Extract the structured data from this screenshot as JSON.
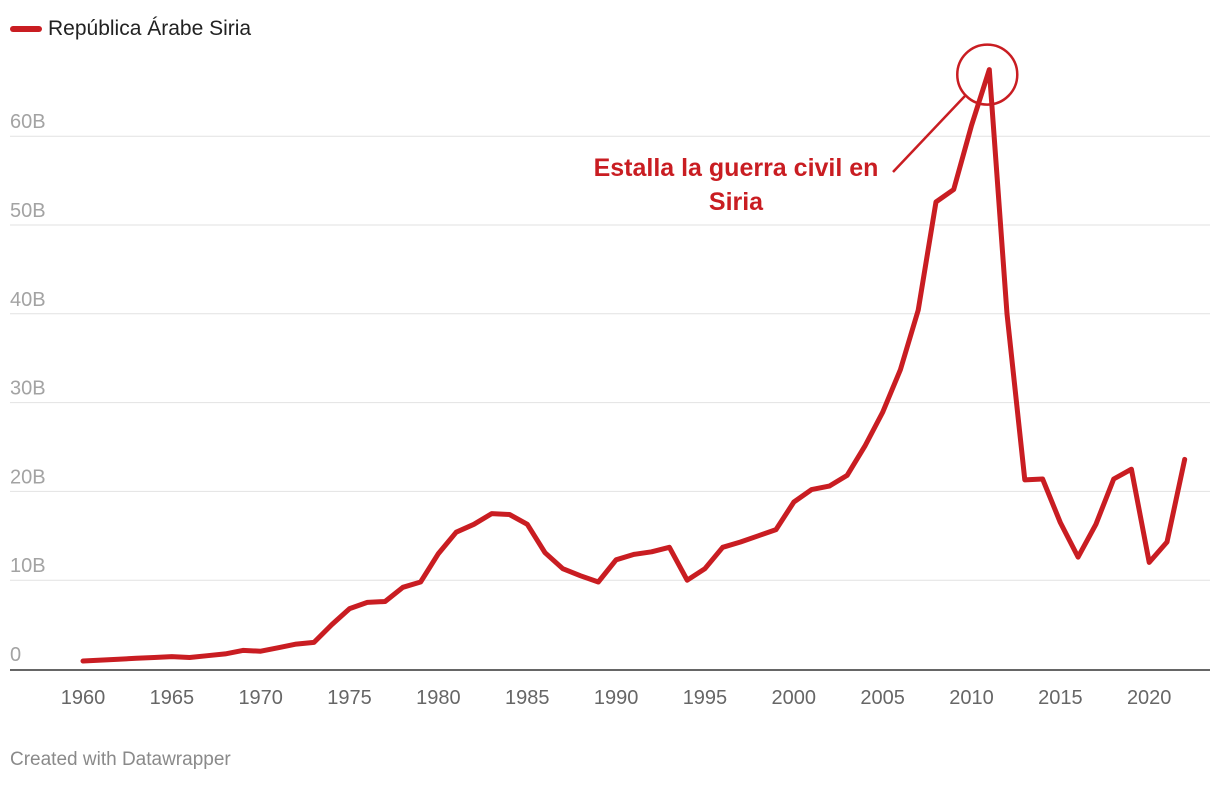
{
  "legend": {
    "label": "República Árabe Siria",
    "color": "#c91d22"
  },
  "footer": "Created with Datawrapper",
  "colors": {
    "line": "#c91d22",
    "grid": "#e2e2e2",
    "axis": "#333333"
  },
  "chart_data": {
    "type": "line",
    "title": "",
    "xlabel": "",
    "ylabel": "",
    "xlim": [
      1960,
      2022
    ],
    "ylim": [
      0,
      70
    ],
    "grid": true,
    "legend_position": "top-left",
    "y_ticks": [
      {
        "value": 0,
        "label": "0"
      },
      {
        "value": 10,
        "label": "10B"
      },
      {
        "value": 20,
        "label": "20B"
      },
      {
        "value": 30,
        "label": "30B"
      },
      {
        "value": 40,
        "label": "40B"
      },
      {
        "value": 50,
        "label": "50B"
      },
      {
        "value": 60,
        "label": "60B"
      }
    ],
    "x_ticks": [
      {
        "value": 1960,
        "label": "1960"
      },
      {
        "value": 1965,
        "label": "1965"
      },
      {
        "value": 1970,
        "label": "1970"
      },
      {
        "value": 1975,
        "label": "1975"
      },
      {
        "value": 1980,
        "label": "1980"
      },
      {
        "value": 1985,
        "label": "1985"
      },
      {
        "value": 1990,
        "label": "1990"
      },
      {
        "value": 1995,
        "label": "1995"
      },
      {
        "value": 2000,
        "label": "2000"
      },
      {
        "value": 2005,
        "label": "2005"
      },
      {
        "value": 2010,
        "label": "2010"
      },
      {
        "value": 2015,
        "label": "2015"
      },
      {
        "value": 2020,
        "label": "2020"
      }
    ],
    "series": [
      {
        "name": "República Árabe Siria",
        "x": [
          1960,
          1961,
          1962,
          1963,
          1964,
          1965,
          1966,
          1967,
          1968,
          1969,
          1970,
          1971,
          1972,
          1973,
          1974,
          1975,
          1976,
          1977,
          1978,
          1979,
          1980,
          1981,
          1982,
          1983,
          1984,
          1985,
          1986,
          1987,
          1988,
          1989,
          1990,
          1991,
          1992,
          1993,
          1994,
          1995,
          1996,
          1997,
          1998,
          1999,
          2000,
          2001,
          2002,
          2003,
          2004,
          2005,
          2006,
          2007,
          2008,
          2009,
          2010,
          2011,
          2012,
          2013,
          2014,
          2015,
          2016,
          2017,
          2018,
          2019,
          2020,
          2021,
          2022
        ],
        "y": [
          0.9,
          1.0,
          1.1,
          1.2,
          1.3,
          1.4,
          1.3,
          1.5,
          1.7,
          2.1,
          2.0,
          2.4,
          2.8,
          3.0,
          5.0,
          6.8,
          7.5,
          7.6,
          9.2,
          9.8,
          13.0,
          15.4,
          16.3,
          17.5,
          17.4,
          16.3,
          13.1,
          11.3,
          10.5,
          9.8,
          12.3,
          12.9,
          13.2,
          13.7,
          10.0,
          11.3,
          13.7,
          14.3,
          15.0,
          15.7,
          18.8,
          20.2,
          20.6,
          21.8,
          25.1,
          28.9,
          33.7,
          40.4,
          52.6,
          54.0,
          61.2,
          67.5,
          40.0,
          21.3,
          21.4,
          16.5,
          12.6,
          16.3,
          21.4,
          22.5,
          12.0,
          14.3,
          23.6
        ]
      }
    ],
    "annotations": [
      {
        "text_lines": [
          "Estalla la guerra civil en",
          "Siria"
        ],
        "x": 2011,
        "y": 67.5
      }
    ]
  }
}
